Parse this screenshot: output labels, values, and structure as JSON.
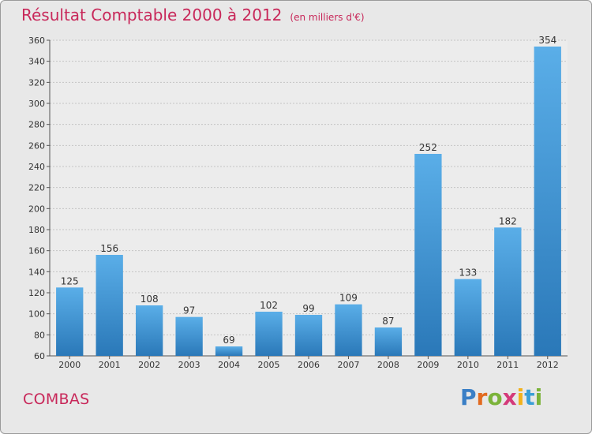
{
  "header": {
    "title": "Résultat Comptable 2000 à 2012",
    "subtitle": "(en milliers d'€)"
  },
  "place_name": "COMBAS",
  "logo": {
    "letters": [
      "P",
      "r",
      "o",
      "x",
      "i",
      "t",
      "i"
    ],
    "colors": [
      "#3a7fc6",
      "#e26a1f",
      "#7bb33a",
      "#d43a7a",
      "#f2b21c",
      "#3a9fd6",
      "#7bb33a"
    ]
  },
  "chart_data": {
    "type": "bar",
    "title": "Résultat Comptable 2000 à 2012",
    "ylabel": "en milliers d'€",
    "xlabel": "",
    "categories": [
      "2000",
      "2001",
      "2002",
      "2003",
      "2004",
      "2005",
      "2006",
      "2007",
      "2008",
      "2009",
      "2010",
      "2011",
      "2012"
    ],
    "values": [
      125,
      156,
      108,
      97,
      69,
      102,
      99,
      109,
      87,
      252,
      133,
      182,
      354
    ],
    "ylim": [
      60,
      360
    ],
    "yticks": [
      60,
      80,
      100,
      120,
      140,
      160,
      180,
      200,
      220,
      240,
      260,
      280,
      300,
      320,
      340,
      360
    ],
    "grid": true,
    "bar_color": "#3a8fd4"
  }
}
